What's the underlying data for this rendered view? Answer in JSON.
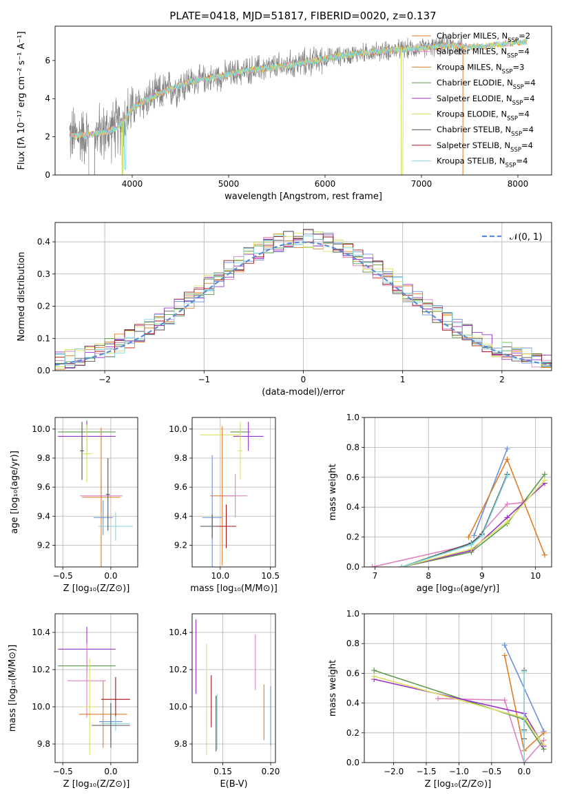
{
  "colors": {
    "grey": "#808080",
    "orange": "#e07b25",
    "pink": "#e07fc0",
    "blue": "#6a8fdc",
    "green": "#5a9a4a",
    "purple": "#9b30c8",
    "yellow": "#d8e060",
    "dark": "#505050",
    "darkred": "#a00f14",
    "cyan": "#7dd8dc",
    "normal": "#5b8bd6"
  },
  "chart_data": [
    {
      "id": "spectrum",
      "type": "line",
      "title": "PLATE=0418, MJD=51817, FIBERID=0020, z=0.137",
      "xlabel": "wavelength [Angstrom, rest frame]",
      "ylabel": "Flux [fλ 10⁻¹⁷ erg cm⁻² s⁻¹ A⁻¹]",
      "xlim": [
        3200,
        8350
      ],
      "ylim": [
        0,
        7.8
      ],
      "xticks": [
        4000,
        5000,
        6000,
        7000,
        8000
      ],
      "yticks": [
        0,
        2,
        4,
        6
      ],
      "grid": false,
      "legend_position": "top-right",
      "legend": [
        {
          "label": "Chabrier MILES, N",
          "sub": "SSP",
          "tail": "=2",
          "color": "orange"
        },
        {
          "label": "Salpeter MILES, N",
          "sub": "SSP",
          "tail": "=4",
          "color": "pink"
        },
        {
          "label": "Kroupa MILES, N",
          "sub": "SSP",
          "tail": "=3",
          "color": "orange"
        },
        {
          "label": "Chabrier ELODIE, N",
          "sub": "SSP",
          "tail": "=4",
          "color": "green"
        },
        {
          "label": "Salpeter ELODIE, N",
          "sub": "SSP",
          "tail": "=4",
          "color": "purple"
        },
        {
          "label": "Kroupa ELODIE, N",
          "sub": "SSP",
          "tail": "=4",
          "color": "yellow"
        },
        {
          "label": "Chabrier STELIB, N",
          "sub": "SSP",
          "tail": "=4",
          "color": "dark"
        },
        {
          "label": "Salpeter STELIB, N",
          "sub": "SSP",
          "tail": "=4",
          "color": "darkred"
        },
        {
          "label": "Kroupa STELIB, N",
          "sub": "SSP",
          "tail": "=4",
          "color": "cyan"
        }
      ],
      "continuum": [
        [
          3350,
          2.05
        ],
        [
          3500,
          2.1
        ],
        [
          3700,
          2.2
        ],
        [
          3850,
          2.5
        ],
        [
          3950,
          3.1
        ],
        [
          4000,
          3.5
        ],
        [
          4100,
          3.8
        ],
        [
          4300,
          4.3
        ],
        [
          4600,
          4.9
        ],
        [
          4900,
          5.15
        ],
        [
          5200,
          5.5
        ],
        [
          5500,
          5.65
        ],
        [
          5800,
          5.9
        ],
        [
          6100,
          6.2
        ],
        [
          6400,
          6.4
        ],
        [
          6700,
          6.55
        ],
        [
          7000,
          6.65
        ],
        [
          7300,
          6.8
        ],
        [
          7500,
          6.7
        ],
        [
          7700,
          6.75
        ],
        [
          7900,
          6.9
        ],
        [
          8100,
          7.0
        ]
      ],
      "model_range": [
        3350,
        8100
      ],
      "data_range": [
        3350,
        7430
      ]
    },
    {
      "id": "residuals",
      "type": "line",
      "xlabel": "(data-model)/error",
      "ylabel": "Normed distribution",
      "xlim": [
        -2.5,
        2.5
      ],
      "ylim": [
        0,
        0.46
      ],
      "xticks": [
        -2,
        -1,
        0,
        1,
        2
      ],
      "yticks": [
        0.0,
        0.1,
        0.2,
        0.3,
        0.4
      ],
      "grid": true,
      "legend_position": "top-right",
      "legend_label": "𝒩(0, 1)",
      "bin_width": 0.1
    },
    {
      "id": "age-vs-Z",
      "type": "scatter",
      "xlabel": "Z [log₁₀(Z/Z⊙)]",
      "ylabel": "age [log₁₀(age/yr)]",
      "xlim": [
        -0.58,
        0.28
      ],
      "ylim": [
        9.05,
        10.08
      ],
      "xticks": [
        -0.5,
        0.0
      ],
      "yticks": [
        9.2,
        9.4,
        9.6,
        9.8,
        10.0
      ],
      "grid": true,
      "points": [
        {
          "x": -0.25,
          "y": 9.98,
          "xerr": 0.3,
          "yerr": 0.08,
          "color": "green"
        },
        {
          "x": -0.25,
          "y": 9.95,
          "xerr": 0.3,
          "yerr": 0.1,
          "color": "purple"
        },
        {
          "x": -0.1,
          "y": 9.54,
          "xerr": 0.22,
          "yerr": 0.12,
          "color": "pink"
        },
        {
          "x": -0.1,
          "y": 9.53,
          "xerr": 0.2,
          "yerr": 0.48,
          "color": "orange"
        },
        {
          "x": -0.25,
          "y": 9.83,
          "xerr": 0.05,
          "yerr": 0.2,
          "color": "yellow"
        },
        {
          "x": -0.08,
          "y": 9.39,
          "xerr": 0.1,
          "yerr": 0.12,
          "color": "blue"
        },
        {
          "x": 0.05,
          "y": 9.33,
          "xerr": 0.18,
          "yerr": 0.1,
          "color": "cyan"
        },
        {
          "x": -0.3,
          "y": 9.85,
          "xerr": 0.02,
          "yerr": 0.2,
          "color": "dark"
        },
        {
          "x": -0.03,
          "y": 9.55,
          "xerr": 0.02,
          "yerr": 0.25,
          "color": "dark"
        }
      ]
    },
    {
      "id": "age-vs-mass",
      "type": "scatter",
      "xlabel": "mass [log₁₀(M/M⊙)]",
      "ylabel": "",
      "xlim": [
        9.72,
        10.55
      ],
      "ylim": [
        9.05,
        10.08
      ],
      "xticks": [
        10.0,
        10.5
      ],
      "yticks": [
        9.2,
        9.4,
        9.6,
        9.8,
        10.0
      ],
      "grid": true,
      "points": [
        {
          "x": 10.0,
          "y": 9.96,
          "xerr": 0.2,
          "yerr": 0.05,
          "color": "yellow"
        },
        {
          "x": 10.2,
          "y": 9.98,
          "xerr": 0.1,
          "yerr": 0.05,
          "color": "green"
        },
        {
          "x": 10.28,
          "y": 9.95,
          "xerr": 0.15,
          "yerr": 0.1,
          "color": "purple"
        },
        {
          "x": 10.02,
          "y": 9.54,
          "xerr": 0.12,
          "yerr": 0.48,
          "color": "orange"
        },
        {
          "x": 10.15,
          "y": 9.54,
          "xerr": 0.12,
          "yerr": 0.15,
          "color": "pink"
        },
        {
          "x": 9.92,
          "y": 9.39,
          "xerr": 0.1,
          "yerr": 0.43,
          "color": "blue"
        },
        {
          "x": 9.92,
          "y": 9.33,
          "xerr": 0.12,
          "yerr": 0.08,
          "color": "dark"
        },
        {
          "x": 10.06,
          "y": 9.33,
          "xerr": 0.1,
          "yerr": 0.15,
          "color": "darkred"
        },
        {
          "x": 10.2,
          "y": 9.85,
          "xerr": 0.02,
          "yerr": 0.2,
          "color": "yellow"
        }
      ]
    },
    {
      "id": "massweight-vs-age",
      "type": "line",
      "xlabel": "age [log₁₀(age/yr)]",
      "ylabel": "mass weight",
      "xlim": [
        6.8,
        10.3
      ],
      "ylim": [
        0,
        1.0
      ],
      "xticks": [
        7,
        8,
        9,
        10
      ],
      "yticks": [
        0.0,
        0.2,
        0.4,
        0.6,
        0.8,
        1.0
      ],
      "grid": true,
      "series": [
        {
          "color": "blue",
          "x": [
            8.85,
            9.47
          ],
          "y": [
            0.21,
            0.79
          ]
        },
        {
          "color": "orange",
          "x": [
            8.75,
            9.47,
            10.17
          ],
          "y": [
            0.2,
            0.72,
            0.08
          ]
        },
        {
          "color": "pink",
          "x": [
            6.95,
            8.8,
            9.47,
            9.75
          ],
          "y": [
            0.0,
            0.15,
            0.42,
            0.43
          ]
        },
        {
          "color": "green",
          "x": [
            7.5,
            8.8,
            9.47,
            10.17
          ],
          "y": [
            0.0,
            0.1,
            0.29,
            0.62
          ]
        },
        {
          "color": "purple",
          "x": [
            7.5,
            8.8,
            9.47,
            10.17
          ],
          "y": [
            0.0,
            0.11,
            0.33,
            0.56
          ]
        },
        {
          "color": "yellow",
          "x": [
            7.5,
            8.8,
            9.47,
            10.17
          ],
          "y": [
            0.0,
            0.12,
            0.3,
            0.58
          ]
        },
        {
          "color": "dark",
          "x": [
            7.5,
            8.8,
            9.0,
            9.47
          ],
          "y": [
            0.0,
            0.16,
            0.22,
            0.62
          ]
        },
        {
          "color": "cyan",
          "x": [
            7.5,
            8.8,
            9.0,
            9.47
          ],
          "y": [
            0.0,
            0.15,
            0.21,
            0.61
          ]
        }
      ]
    },
    {
      "id": "mass-vs-Z",
      "type": "scatter",
      "xlabel": "Z [log₁₀(Z/Z⊙)]",
      "ylabel": "mass [log₁₀(M/M⊙)]",
      "xlim": [
        -0.58,
        0.28
      ],
      "ylim": [
        9.7,
        10.5
      ],
      "xticks": [
        -0.5,
        0.0
      ],
      "yticks": [
        9.8,
        10.0,
        10.2,
        10.4
      ],
      "grid": true,
      "points": [
        {
          "x": -0.25,
          "y": 10.31,
          "xerr": 0.3,
          "yerr": 0.12,
          "color": "purple"
        },
        {
          "x": -0.25,
          "y": 10.22,
          "xerr": 0.3,
          "yerr": 0.08,
          "color": "green"
        },
        {
          "x": -0.25,
          "y": 10.14,
          "xerr": 0.2,
          "yerr": 0.2,
          "color": "pink"
        },
        {
          "x": -0.22,
          "y": 10.0,
          "xerr": 0.08,
          "yerr": 0.26,
          "color": "yellow"
        },
        {
          "x": -0.08,
          "y": 9.96,
          "xerr": 0.25,
          "yerr": 0.18,
          "color": "orange"
        },
        {
          "x": 0.05,
          "y": 10.04,
          "xerr": 0.15,
          "yerr": 0.12,
          "color": "darkred"
        },
        {
          "x": 0.0,
          "y": 9.92,
          "xerr": 0.12,
          "yerr": 0.1,
          "color": "blue"
        },
        {
          "x": 0.05,
          "y": 9.91,
          "xerr": 0.15,
          "yerr": 0.04,
          "color": "cyan"
        },
        {
          "x": 0.0,
          "y": 9.9,
          "xerr": 0.2,
          "yerr": 0.12,
          "color": "dark"
        }
      ]
    },
    {
      "id": "mass-vs-EBV",
      "type": "scatter",
      "xlabel": "E(B-V)",
      "ylabel": "",
      "xlim": [
        0.118,
        0.205
      ],
      "ylim": [
        9.7,
        10.5
      ],
      "xticks": [
        0.15,
        0.2
      ],
      "yticks": [
        9.8,
        10.0,
        10.2,
        10.4
      ],
      "grid": true,
      "points": [
        {
          "x": 0.122,
          "y": 10.27,
          "xerr": 0,
          "yerr": 0.2,
          "color": "purple"
        },
        {
          "x": 0.133,
          "y": 10.04,
          "xerr": 0,
          "yerr": 0.3,
          "color": "yellow"
        },
        {
          "x": 0.138,
          "y": 10.03,
          "xerr": 0,
          "yerr": 0.14,
          "color": "darkred"
        },
        {
          "x": 0.143,
          "y": 9.91,
          "xerr": 0,
          "yerr": 0.15,
          "color": "dark"
        },
        {
          "x": 0.144,
          "y": 9.92,
          "xerr": 0,
          "yerr": 0.15,
          "color": "cyan"
        },
        {
          "x": 0.184,
          "y": 10.24,
          "xerr": 0,
          "yerr": 0.15,
          "color": "pink"
        },
        {
          "x": 0.193,
          "y": 9.97,
          "xerr": 0,
          "yerr": 0.15,
          "color": "orange"
        },
        {
          "x": 0.2,
          "y": 9.95,
          "xerr": 0,
          "yerr": 0.16,
          "color": "blue"
        }
      ]
    },
    {
      "id": "massweight-vs-Z",
      "type": "line",
      "xlabel": "Z [log₁₀(Z/Z⊙)]",
      "ylabel": "mass weight",
      "xlim": [
        -2.45,
        0.42
      ],
      "ylim": [
        0,
        1.0
      ],
      "xticks": [
        -2.0,
        -1.5,
        -1.0,
        -0.5,
        0.0
      ],
      "yticks": [
        0.0,
        0.2,
        0.4,
        0.6,
        0.8,
        1.0
      ],
      "grid": true,
      "series": [
        {
          "color": "blue",
          "x": [
            -0.3,
            0.3
          ],
          "y": [
            0.79,
            0.21
          ]
        },
        {
          "color": "orange",
          "x": [
            -0.3,
            0.0,
            0.3
          ],
          "y": [
            0.72,
            0.08,
            0.2
          ]
        },
        {
          "color": "pink",
          "x": [
            -1.32,
            -0.3,
            0.0,
            0.3
          ],
          "y": [
            0.43,
            0.42,
            0.0,
            0.15
          ]
        },
        {
          "color": "green",
          "x": [
            -2.3,
            0.0,
            0.3
          ],
          "y": [
            0.62,
            0.29,
            0.09
          ]
        },
        {
          "color": "purple",
          "x": [
            -2.3,
            0.0,
            0.3
          ],
          "y": [
            0.56,
            0.33,
            0.11
          ]
        },
        {
          "color": "yellow",
          "x": [
            -2.3,
            0.0,
            0.3
          ],
          "y": [
            0.58,
            0.3,
            0.12
          ]
        },
        {
          "color": "dark",
          "x": [
            0.0,
            0.0,
            0.0
          ],
          "y": [
            0.62,
            0.22,
            0.16
          ]
        },
        {
          "color": "cyan",
          "x": [
            0.0,
            0.0,
            0.0
          ],
          "y": [
            0.61,
            0.21,
            0.0
          ]
        }
      ]
    }
  ]
}
